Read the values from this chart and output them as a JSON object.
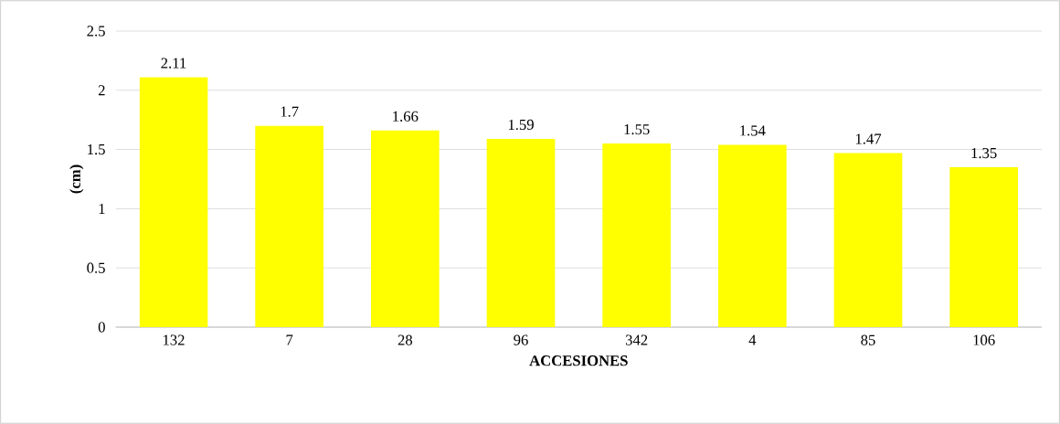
{
  "chart_data": {
    "type": "bar",
    "xlabel": "ACCESIONES",
    "ylabel": "(cm)",
    "categories": [
      "132",
      "7",
      "28",
      "96",
      "342",
      "4",
      "85",
      "106"
    ],
    "values": [
      2.11,
      1.7,
      1.66,
      1.59,
      1.55,
      1.54,
      1.47,
      1.35
    ],
    "color": "#ffff00",
    "ylim": [
      0,
      2.5
    ],
    "yticks": [
      0,
      0.5,
      1,
      1.5,
      2,
      2.5
    ],
    "grid": "y",
    "data_labels": true
  }
}
